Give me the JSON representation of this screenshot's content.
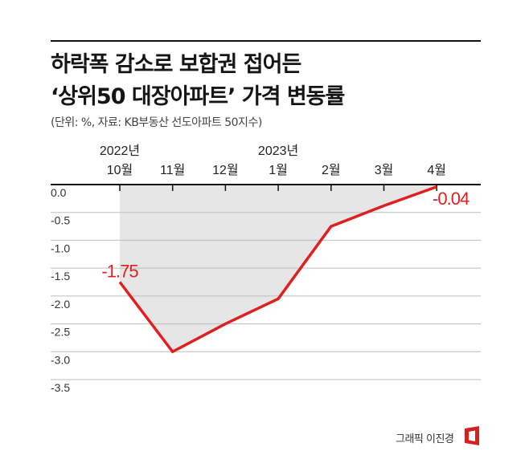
{
  "title": {
    "line1": "하락폭 감소로 보합권 접어든",
    "line2": "‘상위50 대장아파트’ 가격 변동률"
  },
  "source": "(단위: %, 자료: KB부동산 선도아파트 50지수)",
  "credit": "그래픽 이진경",
  "colors": {
    "line": "#e02020",
    "label": "#e02020",
    "area": "#e6e6e6",
    "grid": "#bdbdbd",
    "axis": "#111111"
  },
  "chart_data": {
    "type": "line",
    "x": [
      "2022-10",
      "2022-11",
      "2022-12",
      "2023-01",
      "2023-02",
      "2023-03",
      "2023-04"
    ],
    "month_labels": [
      "10월",
      "11월",
      "12월",
      "1월",
      "2월",
      "3월",
      "4월"
    ],
    "year_labels": [
      "2022년",
      "",
      "",
      "2023년",
      "",
      "",
      ""
    ],
    "y": [
      -1.75,
      -3.0,
      -2.5,
      -2.05,
      -0.75,
      -0.38,
      -0.04
    ],
    "ylim": [
      -3.5,
      0.0
    ],
    "yticks": [
      "0.0",
      "-0.5",
      "-1.0",
      "-1.5",
      "-2.0",
      "-2.5",
      "-3.0",
      "-3.5"
    ],
    "annotations": [
      {
        "index": 0,
        "text": "-1.75"
      },
      {
        "index": 6,
        "text": "-0.04"
      }
    ],
    "grid": true,
    "shaded_area": "between zero line and series, 2022-10 to 2023-04"
  }
}
